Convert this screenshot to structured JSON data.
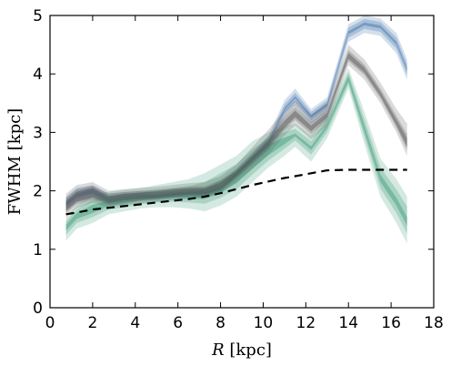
{
  "chart_data": {
    "type": "line",
    "xlabel_var": "R",
    "xlabel_unit": " [kpc]",
    "ylabel": "FWHM [kpc]",
    "title": "",
    "xlim": [
      0,
      18
    ],
    "ylim": [
      0,
      5
    ],
    "xticks": [
      0,
      2,
      4,
      6,
      8,
      10,
      12,
      14,
      16,
      18
    ],
    "yticks": [
      0,
      1,
      2,
      3,
      4,
      5
    ],
    "grid": false,
    "x": [
      0.75,
      1.25,
      2.0,
      2.75,
      3.5,
      4.25,
      5.0,
      5.75,
      6.5,
      7.25,
      8.0,
      8.75,
      9.5,
      10.25,
      11.0,
      11.5,
      12.25,
      13.0,
      14.0,
      14.75,
      15.5,
      16.25,
      16.75
    ],
    "series": [
      {
        "color": "#3b6ea8",
        "bands": [
          {
            "lower": [
              1.65,
              1.8,
              1.9,
              1.75,
              1.8,
              1.83,
              1.83,
              1.86,
              1.88,
              1.88,
              1.95,
              2.2,
              2.45,
              2.7,
              3.25,
              3.45,
              3.15,
              3.35,
              4.55,
              4.7,
              4.65,
              4.35,
              3.9
            ],
            "upper": [
              1.9,
              2.05,
              2.1,
              1.95,
              1.98,
              2.0,
              2.0,
              2.02,
              2.05,
              2.05,
              2.12,
              2.38,
              2.65,
              2.95,
              3.55,
              3.75,
              3.4,
              3.6,
              4.85,
              5.0,
              4.95,
              4.7,
              4.25
            ]
          },
          {
            "lower": [
              1.7,
              1.85,
              1.93,
              1.8,
              1.84,
              1.86,
              1.86,
              1.89,
              1.91,
              1.91,
              1.99,
              2.24,
              2.5,
              2.76,
              3.32,
              3.52,
              3.2,
              3.4,
              4.62,
              4.77,
              4.72,
              4.43,
              3.98
            ],
            "upper": [
              1.85,
              2.0,
              2.07,
              1.91,
              1.95,
              1.97,
              1.97,
              1.99,
              2.02,
              2.02,
              2.09,
              2.34,
              2.61,
              2.89,
              3.48,
              3.68,
              3.35,
              3.55,
              4.79,
              4.94,
              4.89,
              4.62,
              4.17
            ]
          },
          {
            "lower": [
              1.74,
              1.89,
              1.96,
              1.83,
              1.87,
              1.89,
              1.89,
              1.92,
              1.94,
              1.94,
              2.02,
              2.27,
              2.54,
              2.81,
              3.38,
              3.58,
              3.25,
              3.45,
              4.68,
              4.83,
              4.78,
              4.5,
              4.05
            ],
            "upper": [
              1.8,
              1.95,
              2.03,
              1.87,
              1.91,
              1.93,
              1.93,
              1.96,
              1.98,
              1.98,
              2.05,
              2.3,
              2.57,
              2.84,
              3.42,
              3.62,
              3.3,
              3.5,
              4.73,
              4.88,
              4.83,
              4.55,
              4.1
            ]
          }
        ]
      },
      {
        "color": "#3c9a78",
        "bands": [
          {
            "lower": [
              1.15,
              1.35,
              1.45,
              1.6,
              1.65,
              1.7,
              1.72,
              1.72,
              1.7,
              1.65,
              1.75,
              1.9,
              2.15,
              2.4,
              2.6,
              2.75,
              2.5,
              2.9,
              3.75,
              2.8,
              1.9,
              1.45,
              1.1
            ],
            "upper": [
              1.55,
              1.75,
              1.95,
              1.98,
              2.02,
              2.05,
              2.1,
              2.15,
              2.2,
              2.3,
              2.45,
              2.6,
              2.85,
              3.0,
              3.1,
              3.15,
              2.95,
              3.3,
              4.1,
              3.35,
              2.55,
              2.2,
              1.9
            ]
          },
          {
            "lower": [
              1.25,
              1.45,
              1.55,
              1.68,
              1.72,
              1.77,
              1.8,
              1.81,
              1.8,
              1.78,
              1.88,
              2.03,
              2.28,
              2.52,
              2.72,
              2.86,
              2.62,
              3.0,
              3.82,
              2.92,
              2.04,
              1.62,
              1.27
            ],
            "upper": [
              1.48,
              1.68,
              1.85,
              1.9,
              1.94,
              1.97,
              2.01,
              2.05,
              2.08,
              2.15,
              2.3,
              2.46,
              2.71,
              2.9,
              3.0,
              3.06,
              2.85,
              3.22,
              4.03,
              3.22,
              2.4,
              2.02,
              1.73
            ]
          },
          {
            "lower": [
              1.32,
              1.52,
              1.62,
              1.74,
              1.78,
              1.83,
              1.86,
              1.88,
              1.88,
              1.88,
              1.98,
              2.13,
              2.38,
              2.61,
              2.8,
              2.93,
              2.7,
              3.07,
              3.87,
              3.0,
              2.15,
              1.75,
              1.4
            ],
            "upper": [
              1.42,
              1.62,
              1.76,
              1.83,
              1.87,
              1.9,
              1.94,
              1.97,
              1.99,
              2.03,
              2.18,
              2.34,
              2.59,
              2.8,
              2.91,
              2.98,
              2.76,
              3.14,
              3.97,
              3.12,
              2.28,
              1.88,
              1.55
            ]
          }
        ]
      },
      {
        "color": "#555555",
        "bands": [
          {
            "lower": [
              1.55,
              1.7,
              1.8,
              1.72,
              1.76,
              1.79,
              1.81,
              1.84,
              1.86,
              1.86,
              1.95,
              2.15,
              2.38,
              2.62,
              2.95,
              3.12,
              2.88,
              3.12,
              4.15,
              3.9,
              3.5,
              3.0,
              2.6
            ],
            "upper": [
              1.95,
              2.1,
              2.15,
              2.0,
              2.03,
              2.05,
              2.07,
              2.1,
              2.13,
              2.15,
              2.25,
              2.45,
              2.75,
              3.05,
              3.38,
              3.55,
              3.3,
              3.5,
              4.5,
              4.25,
              3.85,
              3.4,
              3.15
            ]
          },
          {
            "lower": [
              1.62,
              1.77,
              1.85,
              1.77,
              1.81,
              1.84,
              1.86,
              1.89,
              1.91,
              1.91,
              2.0,
              2.22,
              2.46,
              2.71,
              3.04,
              3.21,
              2.97,
              3.21,
              4.22,
              3.98,
              3.58,
              3.08,
              2.7
            ],
            "upper": [
              1.88,
              2.03,
              2.09,
              1.95,
              1.98,
              2.0,
              2.02,
              2.04,
              2.07,
              2.08,
              2.18,
              2.38,
              2.65,
              2.93,
              3.26,
              3.43,
              3.18,
              3.39,
              4.41,
              4.16,
              3.75,
              3.28,
              2.97
            ]
          },
          {
            "lower": [
              1.66,
              1.81,
              1.88,
              1.8,
              1.84,
              1.86,
              1.88,
              1.91,
              1.94,
              1.94,
              2.03,
              2.25,
              2.5,
              2.76,
              3.08,
              3.26,
              3.02,
              3.26,
              4.26,
              4.02,
              3.62,
              3.12,
              2.75
            ],
            "upper": [
              1.83,
              1.98,
              2.05,
              1.91,
              1.95,
              1.97,
              1.99,
              2.02,
              2.04,
              2.05,
              2.14,
              2.34,
              2.6,
              2.87,
              3.2,
              3.37,
              3.12,
              3.34,
              4.36,
              4.11,
              3.7,
              3.22,
              2.9
            ]
          }
        ]
      },
      {
        "color": "#000000",
        "style": "dashed",
        "values": [
          1.6,
          1.63,
          1.68,
          1.71,
          1.74,
          1.77,
          1.8,
          1.83,
          1.86,
          1.9,
          1.96,
          2.03,
          2.1,
          2.16,
          2.22,
          2.25,
          2.3,
          2.35,
          2.36,
          2.36,
          2.36,
          2.36,
          2.36
        ]
      }
    ]
  }
}
